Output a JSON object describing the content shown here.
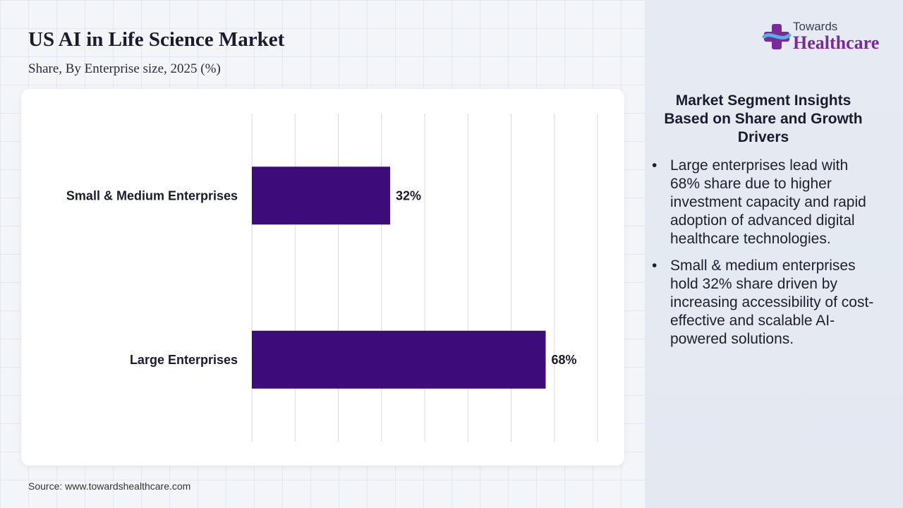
{
  "title": "US AI in Life Science Market",
  "subtitle": "Share, By Enterprise size, 2025 (%)",
  "source": "Source: www.towardshealthcare.com",
  "logo": {
    "line1": "Towards",
    "line2": "Healthcare"
  },
  "insights": {
    "title": "Market Segment Insights Based on Share and Growth Drivers",
    "bullet_symbol": "•",
    "bullets": [
      "Large enterprises lead with 68% share due to higher investment capacity and rapid adoption of advanced digital healthcare technologies.",
      "Small & medium enterprises hold 32% share driven by increasing accessibility of cost-effective and scalable AI-powered solutions."
    ]
  },
  "colors": {
    "bar": "#3d0c7a",
    "accent": "#7a2a9a"
  },
  "chart_data": {
    "type": "bar",
    "orientation": "horizontal",
    "categories": [
      "Small & Medium Enterprises",
      "Large Enterprises"
    ],
    "values": [
      32,
      68
    ],
    "value_labels": [
      "32%",
      "68%"
    ],
    "xlim": [
      0,
      80
    ],
    "grid": true,
    "title": "",
    "xlabel": "",
    "ylabel": ""
  }
}
